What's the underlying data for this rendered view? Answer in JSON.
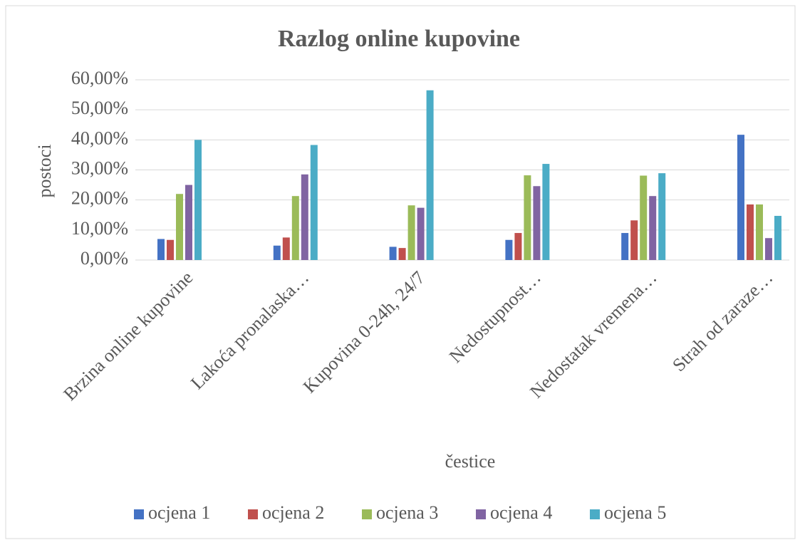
{
  "chart_data": {
    "type": "bar",
    "title": "Razlog online kupovine",
    "y_label": "postoci",
    "x_label": "čestice",
    "categories": [
      "Brzina online kupovine",
      "Lakoća pronalaska…",
      "Kupovina 0-24h, 24/7",
      "Nedostupnost…",
      "Nedostatak vremena…",
      "Strah od zaraze…"
    ],
    "series": [
      {
        "name": "ocjena 1",
        "color": "#4472c4",
        "values": [
          7.0,
          4.8,
          4.4,
          6.7,
          9.0,
          41.7
        ]
      },
      {
        "name": "ocjena 2",
        "color": "#c0504d",
        "values": [
          6.7,
          7.5,
          4.0,
          9.0,
          13.2,
          18.5
        ]
      },
      {
        "name": "ocjena 3",
        "color": "#9bbb59",
        "values": [
          22.0,
          21.3,
          18.2,
          28.2,
          28.1,
          18.5
        ]
      },
      {
        "name": "ocjena 4",
        "color": "#8064a2",
        "values": [
          25.0,
          28.5,
          17.4,
          24.6,
          21.3,
          7.3
        ]
      },
      {
        "name": "ocjena 5",
        "color": "#4bacc6",
        "values": [
          40.0,
          38.3,
          56.5,
          32.0,
          28.9,
          14.7
        ]
      }
    ],
    "ylim": [
      0,
      60
    ],
    "yticks": [
      {
        "value": 0,
        "label": "0,00%"
      },
      {
        "value": 10,
        "label": "10,00%"
      },
      {
        "value": 20,
        "label": "20,00%"
      },
      {
        "value": 30,
        "label": "30,00%"
      },
      {
        "value": 40,
        "label": "40,00%"
      },
      {
        "value": 50,
        "label": "50,00%"
      },
      {
        "value": 60,
        "label": "60,00%"
      }
    ],
    "grid": true,
    "legend": "bottom"
  }
}
